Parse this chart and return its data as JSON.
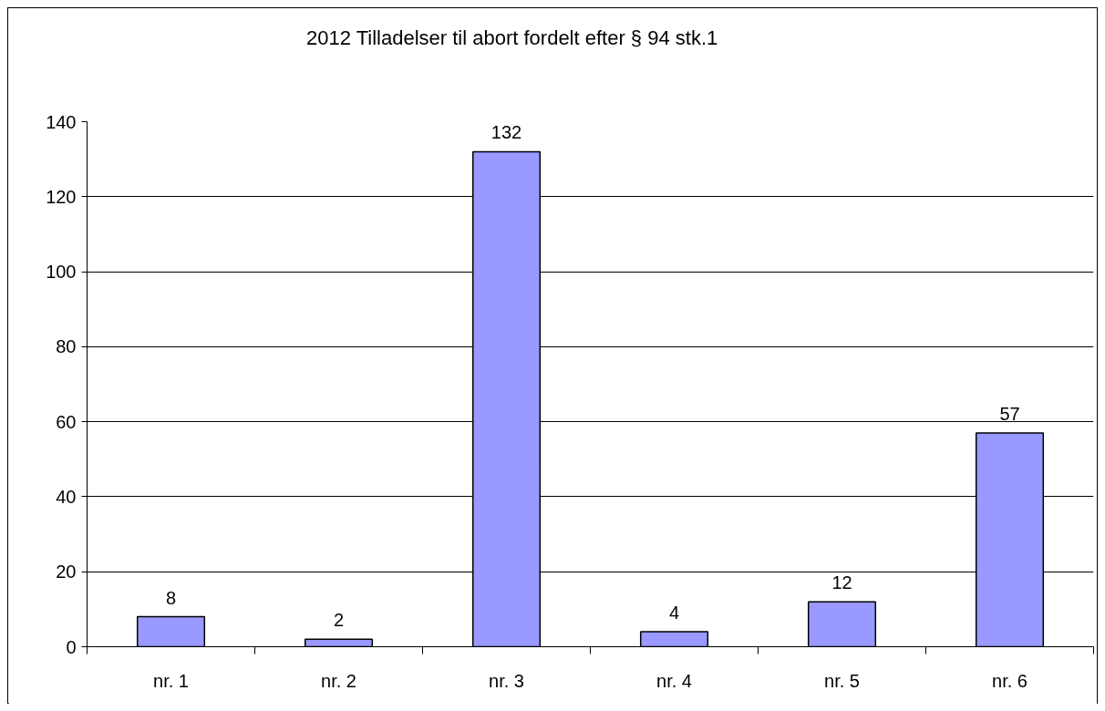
{
  "chart_data": {
    "type": "bar",
    "title": "2012 Tilladelser til abort fordelt efter § 94 stk.1",
    "categories": [
      "nr. 1",
      "nr. 2",
      "nr. 3",
      "nr. 4",
      "nr. 5",
      "nr. 6"
    ],
    "values": [
      8,
      2,
      132,
      4,
      12,
      57
    ],
    "color": "#9999ff",
    "data_labels": true,
    "ylim": [
      0,
      140
    ],
    "yticks": [
      0,
      20,
      40,
      60,
      80,
      100,
      120,
      140
    ],
    "grid": "y"
  }
}
